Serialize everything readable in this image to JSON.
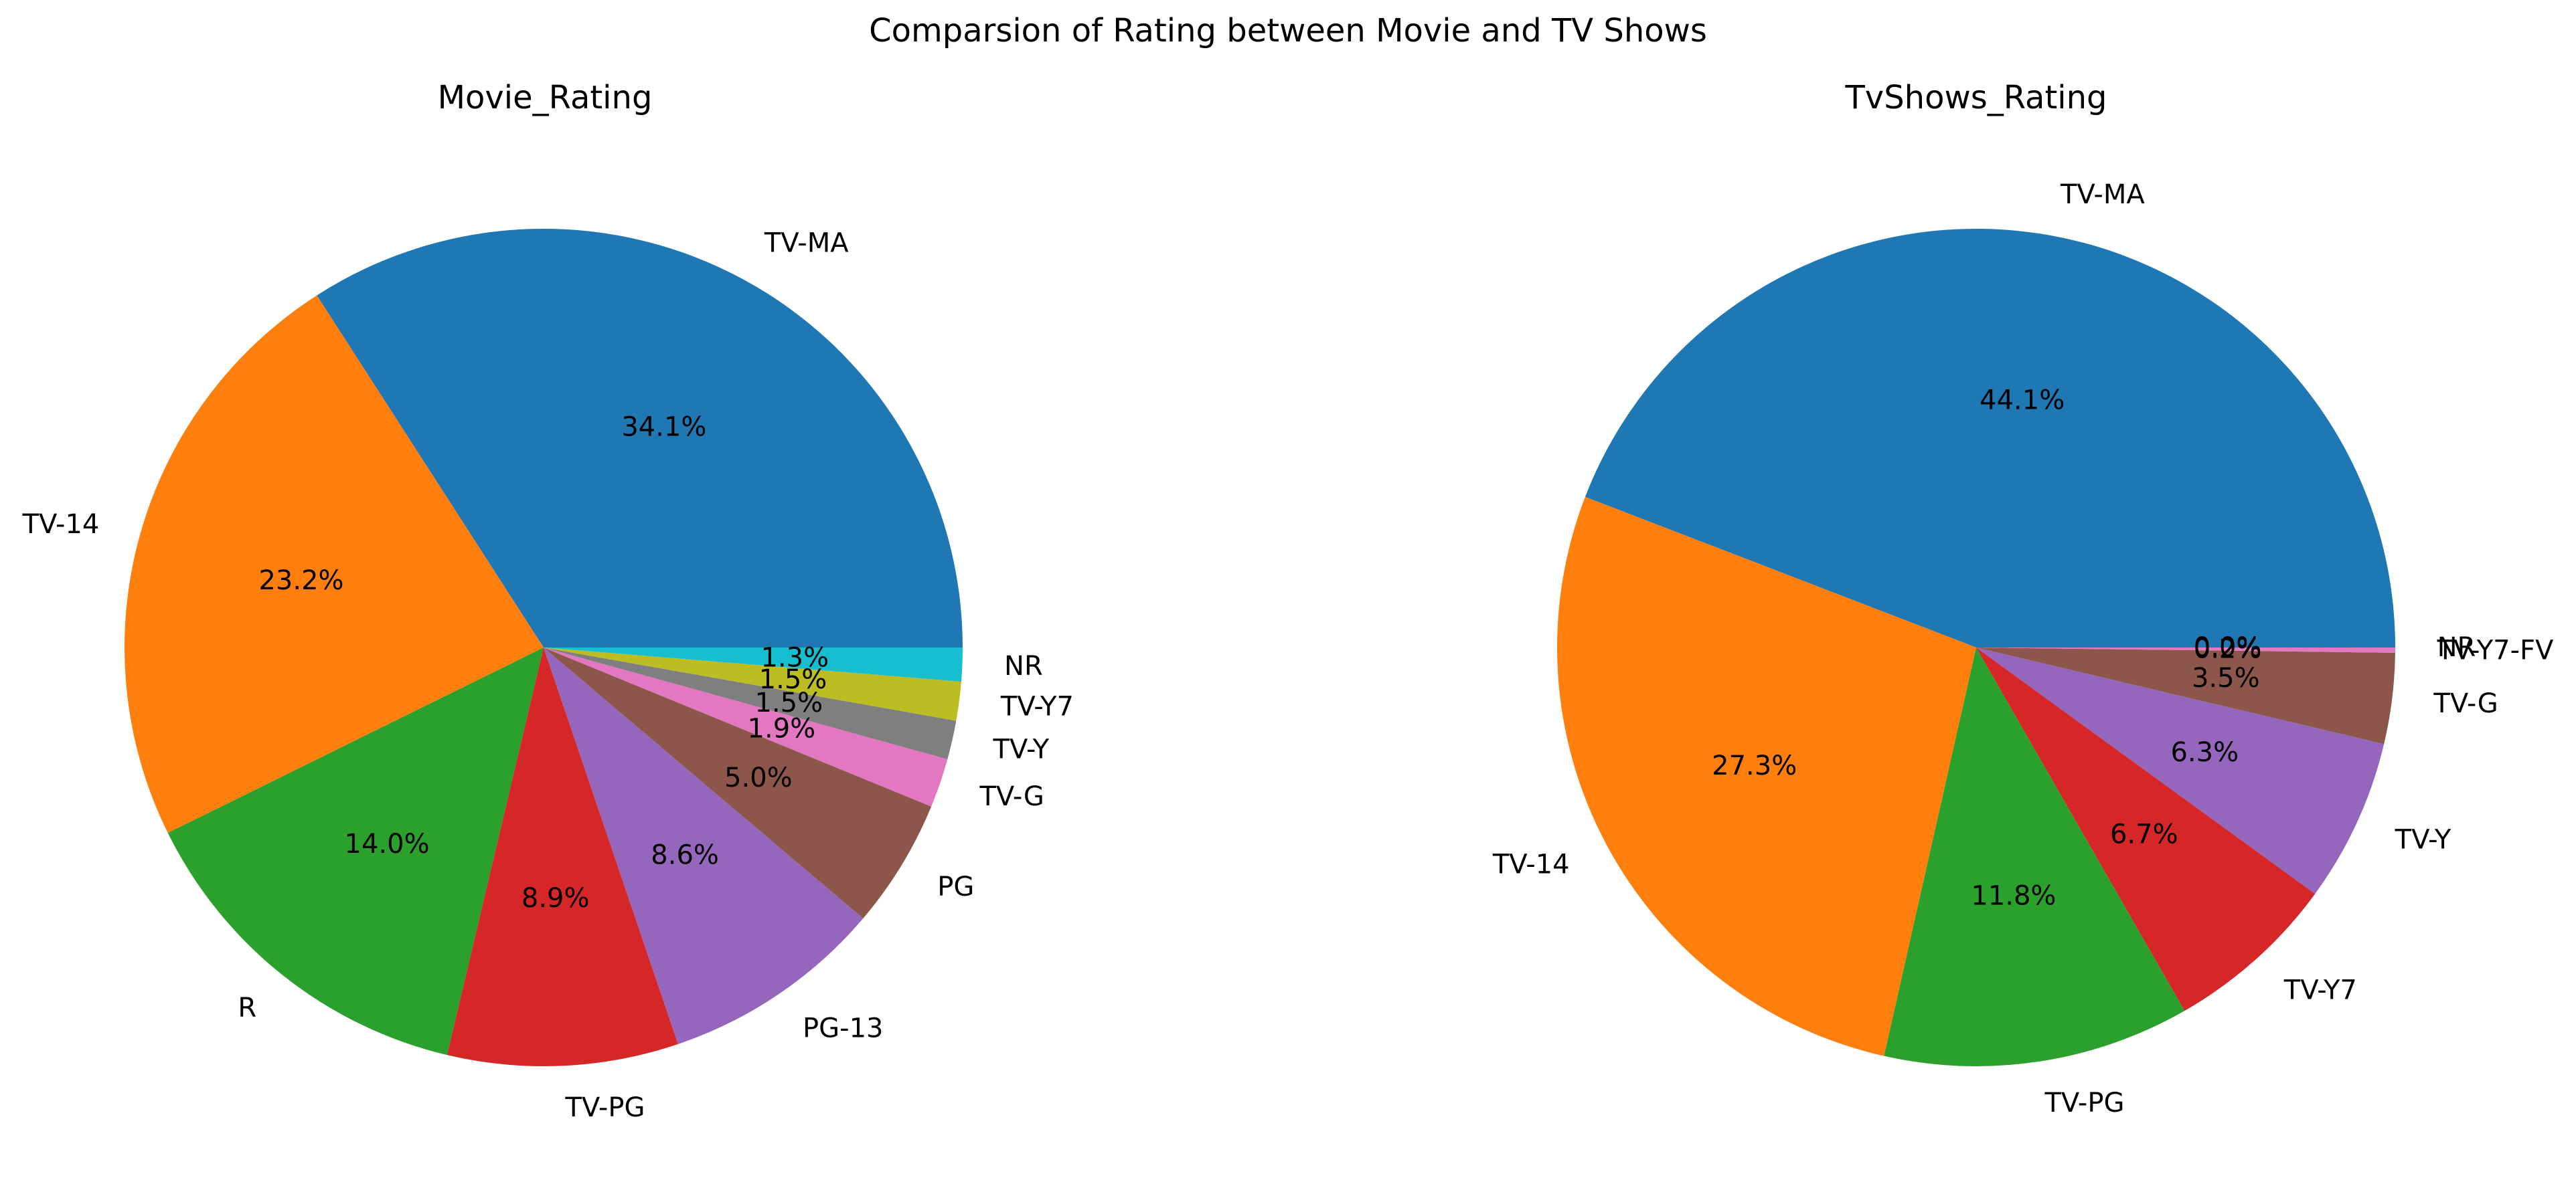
{
  "figure": {
    "title": "Comparsion of Rating between Movie and TV Shows"
  },
  "chart_data": [
    {
      "type": "pie",
      "title": "Movie_Rating",
      "start_angle_deg": 0,
      "direction": "counterclockwise",
      "slices": [
        {
          "label": "TV-MA",
          "value": 34.1,
          "pct_label": "34.1%",
          "color": "#1f77b4"
        },
        {
          "label": "TV-14",
          "value": 23.2,
          "pct_label": "23.2%",
          "color": "#ff7f0e"
        },
        {
          "label": "R",
          "value": 14.0,
          "pct_label": "14.0%",
          "color": "#2ca02c"
        },
        {
          "label": "TV-PG",
          "value": 8.9,
          "pct_label": "8.9%",
          "color": "#d62728"
        },
        {
          "label": "PG-13",
          "value": 8.6,
          "pct_label": "8.6%",
          "color": "#9467bd"
        },
        {
          "label": "PG",
          "value": 5.0,
          "pct_label": "5.0%",
          "color": "#8c564b"
        },
        {
          "label": "TV-G",
          "value": 1.9,
          "pct_label": "1.9%",
          "color": "#e377c2"
        },
        {
          "label": "TV-Y",
          "value": 1.5,
          "pct_label": "1.5%",
          "color": "#7f7f7f"
        },
        {
          "label": "TV-Y7",
          "value": 1.5,
          "pct_label": "1.5%",
          "color": "#bcbd22"
        },
        {
          "label": "NR",
          "value": 1.3,
          "pct_label": "1.3%",
          "color": "#17becf"
        }
      ]
    },
    {
      "type": "pie",
      "title": "TvShows_Rating",
      "start_angle_deg": 0,
      "direction": "counterclockwise",
      "slices": [
        {
          "label": "TV-MA",
          "value": 44.1,
          "pct_label": "44.1%",
          "color": "#1f77b4"
        },
        {
          "label": "TV-14",
          "value": 27.3,
          "pct_label": "27.3%",
          "color": "#ff7f0e"
        },
        {
          "label": "TV-PG",
          "value": 11.8,
          "pct_label": "11.8%",
          "color": "#2ca02c"
        },
        {
          "label": "TV-Y7",
          "value": 6.7,
          "pct_label": "6.7%",
          "color": "#d62728"
        },
        {
          "label": "TV-Y",
          "value": 6.3,
          "pct_label": "6.3%",
          "color": "#9467bd"
        },
        {
          "label": "TV-G",
          "value": 3.5,
          "pct_label": "3.5%",
          "color": "#8c564b"
        },
        {
          "label": "TV-Y7-FV",
          "value": 0.2,
          "pct_label": "0.2%",
          "color": "#e377c2"
        },
        {
          "label": "NR",
          "value": 0.0,
          "pct_label": "0.0%",
          "color": "#7f7f7f"
        }
      ]
    }
  ]
}
